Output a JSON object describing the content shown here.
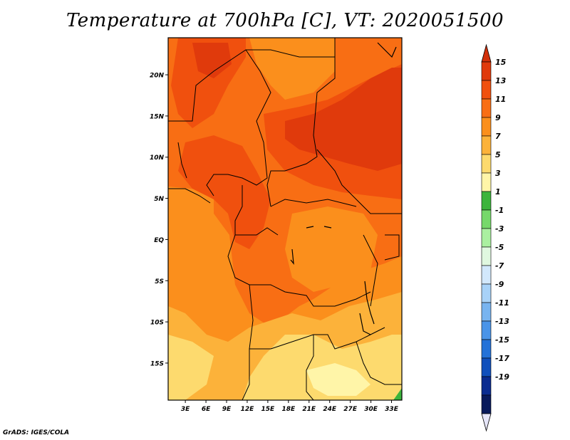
{
  "title": "Temperature at 700hPa [C], VT: 2020051500",
  "footer": "GrADS: IGES/COLA",
  "map": {
    "lat_labels": [
      "20N",
      "15N",
      "10N",
      "5N",
      "EQ",
      "5S",
      "10S",
      "15S"
    ],
    "lon_labels": [
      "3E",
      "6E",
      "9E",
      "12E",
      "15E",
      "18E",
      "21E",
      "24E",
      "27E",
      "30E",
      "33E"
    ],
    "lat_values": [
      20,
      15,
      10,
      5,
      0,
      -5,
      -10,
      -15
    ],
    "lon_values": [
      3,
      6,
      9,
      12,
      15,
      18,
      21,
      24,
      27,
      30,
      33
    ],
    "lon_range": [
      0.5,
      34.5
    ],
    "lat_range": [
      -19.5,
      24.5
    ],
    "field": "Temperature at 700hPa",
    "units": "C"
  },
  "colorbar": {
    "labels": [
      "15",
      "13",
      "11",
      "9",
      "7",
      "5",
      "3",
      "1",
      "-1",
      "-3",
      "-5",
      "-7",
      "-9",
      "-11",
      "-13",
      "-15",
      "-17",
      "-19"
    ],
    "colors": [
      "#e03a0c",
      "#f0500e",
      "#f86e14",
      "#fb8f1c",
      "#fcb23a",
      "#fdda6e",
      "#fff5a8",
      "#3cb43c",
      "#76d86a",
      "#aaf0a0",
      "#e0f8e0",
      "#d2e8fc",
      "#a8d2f8",
      "#78b4f0",
      "#4a94e8",
      "#2472d8",
      "#1050bc",
      "#0a2c90",
      "#081a5c"
    ],
    "top_arrow_color": "#d2300a",
    "bottom_arrow_color": "#e6e6fa"
  },
  "temperature_colors": {
    "t3": "#fff5a8",
    "t5": "#fdda6e",
    "t7": "#fcb23a",
    "t9": "#fb8f1c",
    "t11": "#f86e14",
    "t13": "#f0500e",
    "t15": "#e03a0c",
    "green": "#3cb43c"
  }
}
